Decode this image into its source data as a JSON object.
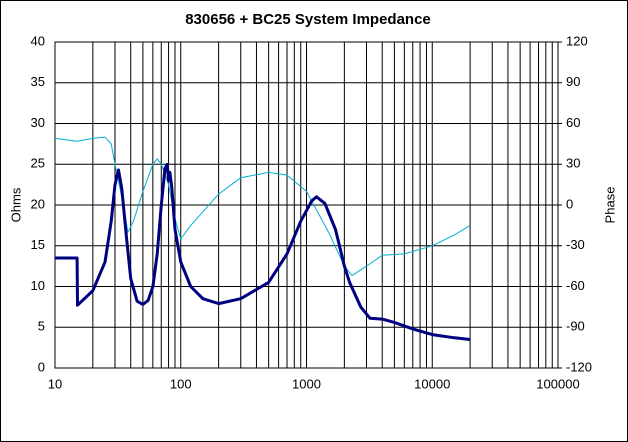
{
  "chart_data": {
    "type": "line",
    "title": "830656 + BC25    System Impedance",
    "y_label": "Ohms",
    "y2_label": "Phase",
    "log_x": true,
    "grid": true,
    "minor_grid": true,
    "xlim": [
      10,
      100000
    ],
    "xticks": [
      10,
      100,
      1000,
      10000,
      100000
    ],
    "ylim": [
      0,
      40
    ],
    "yticks": [
      0,
      5,
      10,
      15,
      20,
      25,
      30,
      35,
      40
    ],
    "y2lim": [
      -120,
      120
    ],
    "y2ticks": [
      -120,
      -90,
      -60,
      -30,
      0,
      30,
      60,
      90,
      120
    ],
    "series": [
      {
        "color": "#000080",
        "width": 3,
        "x": [
          10,
          15,
          15.1,
          20,
          25,
          28,
          30,
          32,
          34,
          37,
          40,
          45,
          50,
          55,
          60,
          65,
          70,
          75,
          78,
          80,
          82,
          85,
          90,
          100,
          120,
          150,
          200,
          300,
          500,
          700,
          900,
          1100,
          1200,
          1400,
          1700,
          2000,
          2200,
          2700,
          3200,
          4000,
          5000,
          7000,
          10000,
          15000,
          20000
        ],
        "values": [
          13.5,
          13.5,
          7.7,
          9.5,
          13,
          18,
          22.5,
          24.3,
          22,
          16,
          11,
          8.2,
          7.8,
          8.3,
          10,
          14,
          20,
          24.5,
          25,
          23,
          24,
          22,
          17,
          13,
          10,
          8.5,
          7.9,
          8.5,
          10.5,
          14,
          18,
          20.5,
          21,
          20.2,
          17,
          12.5,
          10.5,
          7.5,
          6.1,
          6,
          5.6,
          4.8,
          4.1,
          3.7,
          3.5
        ]
      },
      {
        "color": "#00b0d0",
        "width": 1,
        "axis": "y2",
        "x": [
          10,
          15,
          20,
          25,
          28,
          30,
          35,
          38,
          42,
          50,
          60,
          65,
          70,
          80,
          90,
          100,
          120,
          150,
          200,
          300,
          500,
          700,
          1000,
          1500,
          2000,
          2300,
          3000,
          4000,
          6000,
          10000,
          15000,
          20000
        ],
        "values": [
          49,
          47,
          49,
          50,
          45,
          30,
          0,
          -20,
          -12,
          10,
          30,
          34,
          30,
          15,
          -10,
          -25,
          -15,
          -5,
          8,
          20,
          24,
          22,
          10,
          -20,
          -45,
          -52,
          -45,
          -37,
          -36,
          -30,
          -22,
          -15
        ]
      }
    ]
  }
}
